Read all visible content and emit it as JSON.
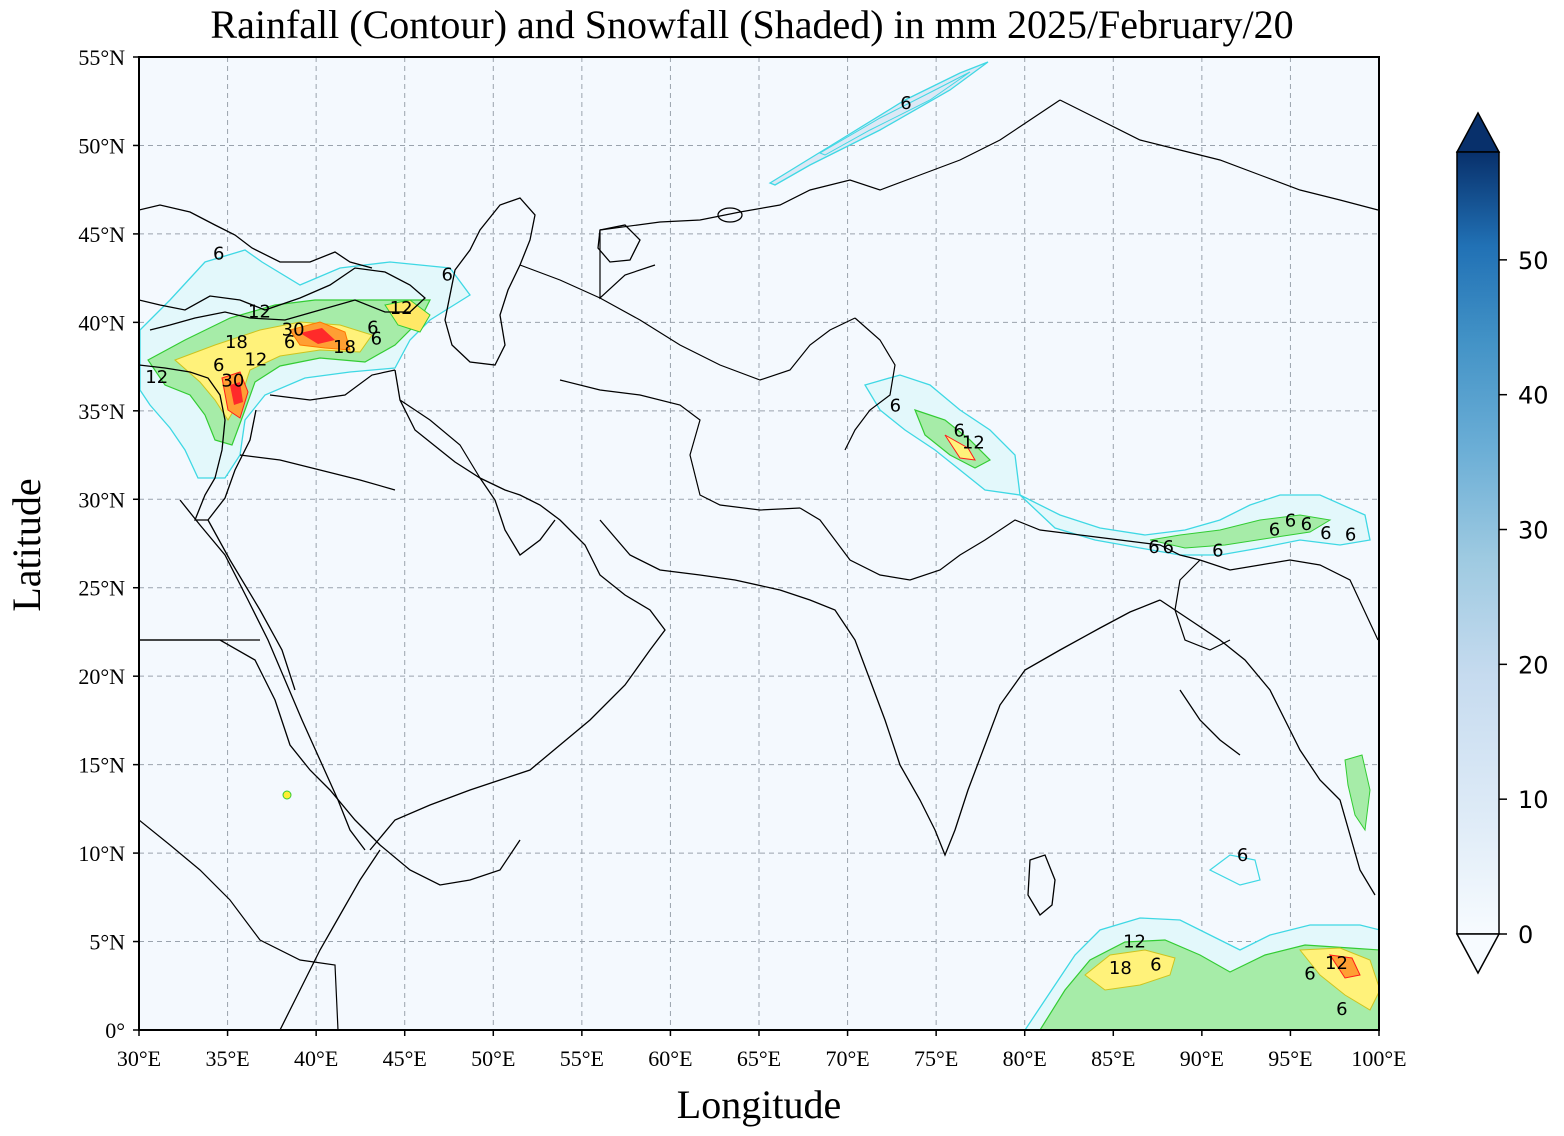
{
  "title": "Rainfall (Contour) and Snowfall (Shaded) in mm  2025/February/20",
  "xlabel": "Longitude",
  "ylabel": "Latitude",
  "x_ticks": [
    "30°E",
    "35°E",
    "40°E",
    "45°E",
    "50°E",
    "55°E",
    "60°E",
    "65°E",
    "70°E",
    "75°E",
    "80°E",
    "85°E",
    "90°E",
    "95°E",
    "100°E"
  ],
  "y_ticks": [
    "0°",
    "5°N",
    "10°N",
    "15°N",
    "20°N",
    "25°N",
    "30°N",
    "35°N",
    "40°N",
    "45°N",
    "50°N",
    "55°N"
  ],
  "colorbar": {
    "ticks": [
      "0",
      "10",
      "20",
      "30",
      "40",
      "50"
    ],
    "values": [
      0,
      10,
      20,
      30,
      40,
      50
    ],
    "range": [
      0,
      58
    ],
    "colormap": "Blues",
    "extend": "both"
  },
  "colors": {
    "ocean_background": "#f4f9fe",
    "contour_cyan": "#3fd8e4",
    "contour_green": "#33cc33",
    "contour_yellow": "#ffee33",
    "contour_orange": "#ff9900",
    "contour_red": "#ff1a1a",
    "snow_shade": "#dce8f5"
  },
  "map_extent": {
    "lon": [
      30,
      100
    ],
    "lat": [
      0,
      55
    ]
  },
  "contour_levels_mm": [
    6,
    12,
    18,
    24,
    30
  ],
  "contour_labels": [
    {
      "lon": 73.3,
      "lat": 52.4,
      "text": "6"
    },
    {
      "lon": 34.5,
      "lat": 43.9,
      "text": "6"
    },
    {
      "lon": 47.4,
      "lat": 42.7,
      "text": "6"
    },
    {
      "lon": 36.8,
      "lat": 40.6,
      "text": "12"
    },
    {
      "lon": 44.8,
      "lat": 40.8,
      "text": "12"
    },
    {
      "lon": 38.7,
      "lat": 39.6,
      "text": "30"
    },
    {
      "lon": 35.5,
      "lat": 38.9,
      "text": "18"
    },
    {
      "lon": 38.5,
      "lat": 38.9,
      "text": "6"
    },
    {
      "lon": 43.2,
      "lat": 39.7,
      "text": "6"
    },
    {
      "lon": 43.4,
      "lat": 39.1,
      "text": "6"
    },
    {
      "lon": 36.6,
      "lat": 37.9,
      "text": "12"
    },
    {
      "lon": 34.5,
      "lat": 37.6,
      "text": "6"
    },
    {
      "lon": 31.0,
      "lat": 36.9,
      "text": "12"
    },
    {
      "lon": 35.3,
      "lat": 36.7,
      "text": "30"
    },
    {
      "lon": 41.6,
      "lat": 38.6,
      "text": "18"
    },
    {
      "lon": 72.7,
      "lat": 35.3,
      "text": "6"
    },
    {
      "lon": 76.3,
      "lat": 33.9,
      "text": "6"
    },
    {
      "lon": 77.1,
      "lat": 33.2,
      "text": "12"
    },
    {
      "lon": 87.3,
      "lat": 27.3,
      "text": "6"
    },
    {
      "lon": 88.1,
      "lat": 27.3,
      "text": "6"
    },
    {
      "lon": 90.9,
      "lat": 27.1,
      "text": "6"
    },
    {
      "lon": 94.1,
      "lat": 28.3,
      "text": "6"
    },
    {
      "lon": 95.0,
      "lat": 28.8,
      "text": "6"
    },
    {
      "lon": 95.9,
      "lat": 28.6,
      "text": "6"
    },
    {
      "lon": 97.0,
      "lat": 28.1,
      "text": "6"
    },
    {
      "lon": 98.4,
      "lat": 28.0,
      "text": "6"
    },
    {
      "lon": 92.3,
      "lat": 9.9,
      "text": "6"
    },
    {
      "lon": 86.2,
      "lat": 5.0,
      "text": "12"
    },
    {
      "lon": 85.4,
      "lat": 3.5,
      "text": "18"
    },
    {
      "lon": 87.4,
      "lat": 3.7,
      "text": "6"
    },
    {
      "lon": 97.6,
      "lat": 3.8,
      "text": "12"
    },
    {
      "lon": 96.1,
      "lat": 3.2,
      "text": "6"
    },
    {
      "lon": 97.9,
      "lat": 1.2,
      "text": "6"
    }
  ]
}
